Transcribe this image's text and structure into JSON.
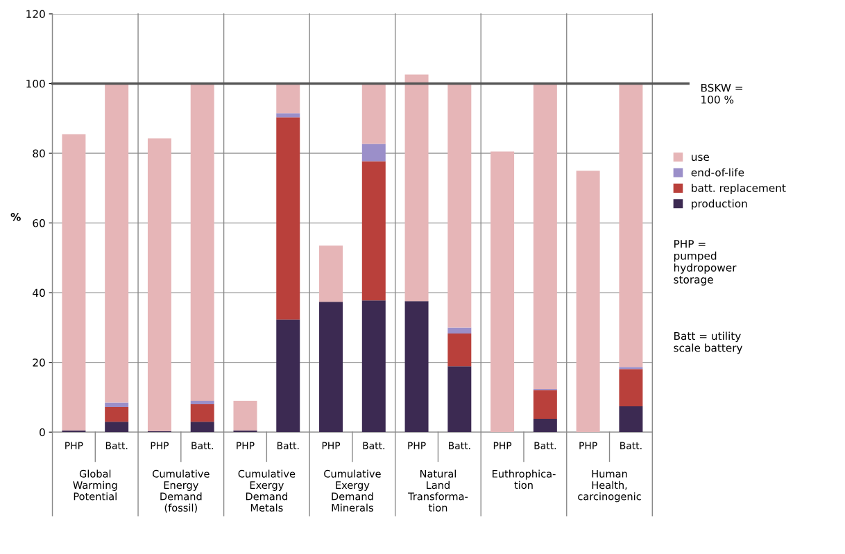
{
  "chart_data": {
    "type": "bar",
    "stacked": true,
    "ylabel": "%",
    "categories": [
      "PHP",
      "Batt.",
      "PHP",
      "Batt.",
      "PHP",
      "Batt.",
      "PHP",
      "Batt.",
      "PHP",
      "Batt.",
      "PHP",
      "Batt.",
      "PHP",
      "Batt."
    ],
    "series": [
      {
        "name": "production",
        "color": "#3c2a52",
        "values": [
          0.5,
          3,
          0.3,
          3,
          0.5,
          32.3,
          37.4,
          37.8,
          37.6,
          18.9,
          0,
          3.8,
          0,
          7.4
        ]
      },
      {
        "name": "batt. replacement",
        "color": "#b9403b",
        "values": [
          0,
          4.2,
          0,
          5,
          0,
          58,
          0,
          39.9,
          0,
          9.4,
          0,
          8.3,
          0,
          10.7
        ]
      },
      {
        "name": "end-of-life",
        "color": "#9b8fc9",
        "values": [
          0,
          1.3,
          0,
          1,
          0,
          1.2,
          0,
          5,
          0,
          1.7,
          0,
          0.3,
          0,
          0.6
        ]
      },
      {
        "name": "use",
        "color": "#e6b5b7",
        "values": [
          85,
          91.5,
          84,
          91,
          8.5,
          8.5,
          16.1,
          17.3,
          65,
          70,
          80.5,
          87.6,
          75,
          81.3
        ]
      }
    ],
    "ylim": [
      0,
      120
    ],
    "yticks": [
      0,
      20,
      40,
      60,
      80,
      100,
      120
    ],
    "grid": "y",
    "legend": "right",
    "ref_lines": [
      {
        "axis": "y",
        "value": 100,
        "label": "BSKW =\n100 %",
        "color": "#555555"
      }
    ],
    "annotations": [
      "Global\nWarming\nPotential",
      "Cumulative\nEnergy\nDemand\n(fossil)",
      "Cumulative\nExergy\nDemand\nMetals",
      "Cumulative\nExergy\nDemand\nMinerals",
      "Natural\nLand\nTransforma-\ntion",
      "Euthrophica-\ntion",
      "Human\nHealth,\ncarcinogenic",
      "PHP =\npumped\nhydropower\nstorage",
      "Batt = utility\nscale battery"
    ]
  }
}
